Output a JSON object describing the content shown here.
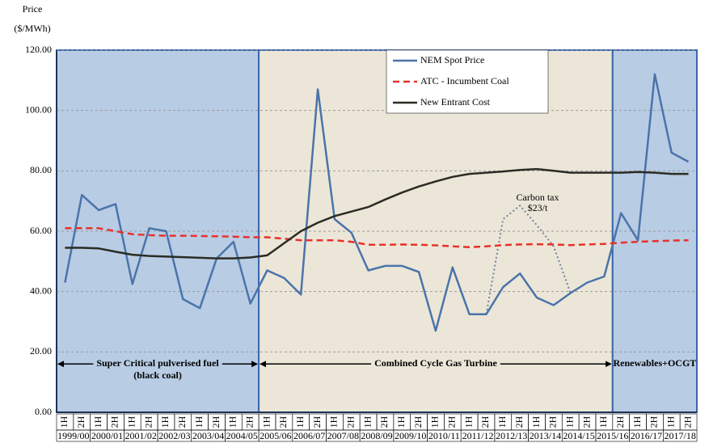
{
  "chart_data": {
    "type": "line",
    "y_axis_label": [
      "Price",
      "($/MWh)"
    ],
    "categories": [
      "1H",
      "2H",
      "1H",
      "2H",
      "1H",
      "2H",
      "1H",
      "2H",
      "1H",
      "2H",
      "1H",
      "2H",
      "1H",
      "2H",
      "1H",
      "2H",
      "1H",
      "2H",
      "1H",
      "2H",
      "1H",
      "2H",
      "1H",
      "2H",
      "1H",
      "2H",
      "1H",
      "2H",
      "1H",
      "2H",
      "1H",
      "2H",
      "1H",
      "2H",
      "1H",
      "2H",
      "1H",
      "2H"
    ],
    "years": [
      "1999/00",
      "2000/01",
      "2001/02",
      "2002/03",
      "2003/04",
      "2004/05",
      "2005/06",
      "2006/07",
      "2007/08",
      "2008/09",
      "2009/10",
      "2010/11",
      "2011/12",
      "2012/13",
      "2013/14",
      "2014/15",
      "2015/16",
      "2016/17",
      "2017/18"
    ],
    "ylim": [
      0,
      120
    ],
    "yticks": [
      {
        "value": 0,
        "label": "0.00"
      },
      {
        "value": 20,
        "label": "20.00"
      },
      {
        "value": 40,
        "label": "40.00"
      },
      {
        "value": 60,
        "label": "60.00"
      },
      {
        "value": 80,
        "label": "80.00"
      },
      {
        "value": 100,
        "label": "100.00"
      },
      {
        "value": 120,
        "label": "120.00"
      }
    ],
    "grid": true,
    "series": [
      {
        "name": "NEM Spot Price",
        "color": "#4a74aa",
        "style": "solid",
        "values": [
          43,
          72,
          67,
          69,
          42.5,
          61,
          60,
          37.5,
          34.5,
          51,
          56.5,
          36,
          47,
          44.5,
          39,
          107,
          64,
          59.5,
          47,
          48.5,
          48.5,
          46.5,
          27,
          48,
          32.5,
          32.5,
          41.5,
          46,
          38,
          35.5,
          39.5,
          43,
          45,
          66,
          57,
          112,
          86,
          83
        ]
      },
      {
        "name": "ATC - Incumbent Coal",
        "color": "#e8312a",
        "style": "dashed",
        "values": [
          61,
          61,
          61,
          60,
          59,
          58.7,
          58.5,
          58.5,
          58.4,
          58.3,
          58.2,
          58,
          58,
          57.5,
          57,
          57,
          57,
          56.5,
          55.5,
          55.5,
          55.6,
          55.5,
          55.3,
          55,
          54.7,
          55,
          55.4,
          55.6,
          55.7,
          55.6,
          55.4,
          55.6,
          55.8,
          56.2,
          56.5,
          56.7,
          56.9,
          57
        ]
      },
      {
        "name": "New Entrant Cost",
        "color": "#2b2b24",
        "style": "solid",
        "values": [
          54.5,
          54.5,
          54.3,
          53.2,
          52.2,
          51.8,
          51.6,
          51.4,
          51.2,
          51,
          51,
          51.3,
          52,
          56,
          60,
          62.8,
          65,
          66.5,
          68,
          70.5,
          72.8,
          74.8,
          76.5,
          78,
          79,
          79.4,
          79.8,
          80.3,
          80.6,
          80,
          79.4,
          79.4,
          79.4,
          79.4,
          79.6,
          79.4,
          79,
          79
        ]
      }
    ],
    "carbon_tax": {
      "label": [
        "Carbon tax",
        "$23/t"
      ],
      "color": "#6e84a0",
      "values": [
        null,
        null,
        null,
        null,
        null,
        null,
        null,
        null,
        null,
        null,
        null,
        null,
        null,
        null,
        null,
        null,
        null,
        null,
        null,
        null,
        null,
        null,
        null,
        null,
        null,
        32.5,
        64,
        68.5,
        62,
        55,
        39.5,
        null,
        null,
        null,
        null,
        null,
        null,
        null
      ]
    },
    "regions": [
      {
        "from": 0,
        "to": 11,
        "fill": "#b8cce4",
        "label": [
          "Super Critical pulverised fuel",
          "(black coal)"
        ]
      },
      {
        "from": 12,
        "to": 32,
        "fill": "#ece6d8",
        "label": [
          "Combined Cycle Gas Turbine"
        ]
      },
      {
        "from": 33,
        "to": 37,
        "fill": "#b8cce4",
        "label": [
          "Renewables+OCGT"
        ]
      }
    ]
  }
}
